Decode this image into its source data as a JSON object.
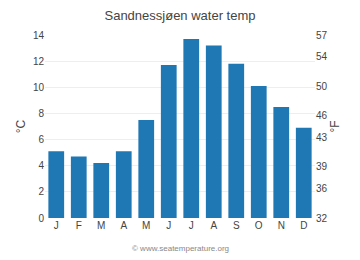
{
  "chart_data": {
    "type": "bar",
    "title": "Sandnessjøen water temp",
    "categories": [
      "J",
      "F",
      "M",
      "A",
      "M",
      "J",
      "J",
      "A",
      "S",
      "O",
      "N",
      "D"
    ],
    "values": [
      5.1,
      4.7,
      4.2,
      5.1,
      7.5,
      11.7,
      13.7,
      13.2,
      11.8,
      10.1,
      8.5,
      6.9
    ],
    "ylim": [
      0,
      14
    ],
    "yticks": [
      0,
      2,
      4,
      6,
      8,
      10,
      12,
      14
    ],
    "ylabel": "°C",
    "y2lim": [
      32,
      57
    ],
    "y2ticks": [
      32,
      36,
      39,
      43,
      46,
      50,
      54,
      57
    ],
    "y2label": "°F",
    "grid": true,
    "annotations": [
      "© www.seatemperature.org"
    ]
  }
}
